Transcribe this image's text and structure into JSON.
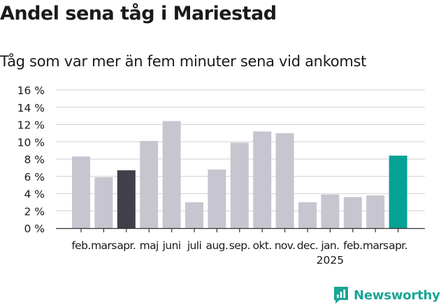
{
  "title": "Andel sena tåg i Mariestad",
  "subtitle": "Tåg som var mer än fem minuter sena vid ankomst",
  "brand": {
    "name": "Newsworthy",
    "color": "#1aa596"
  },
  "colors": {
    "bar_default": "#c7c5d0",
    "bar_highlight_prev": "#403f4c",
    "bar_highlight_current": "#06a294",
    "grid": "#d9d9d9",
    "axis": "#333333"
  },
  "chart_data": {
    "type": "bar",
    "categories": [
      "feb.",
      "mars",
      "apr.",
      "maj",
      "juni",
      "juli",
      "aug.",
      "sep.",
      "okt.",
      "nov.",
      "dec.",
      "jan.",
      "feb.",
      "mars",
      "apr."
    ],
    "year_label": {
      "text": "2025",
      "under_category_index": 11
    },
    "values": [
      8.3,
      5.9,
      6.7,
      10.1,
      12.4,
      3.0,
      6.8,
      9.9,
      11.2,
      11.0,
      3.0,
      3.9,
      3.6,
      3.8,
      8.4
    ],
    "highlight": {
      "2": "bar_highlight_prev",
      "14": "bar_highlight_current"
    },
    "yticks": [
      0,
      2,
      4,
      6,
      8,
      10,
      12,
      14,
      16
    ],
    "ytick_labels": [
      "0 %",
      "2 %",
      "4 %",
      "6 %",
      "8 %",
      "10 %",
      "12 %",
      "14 %",
      "16 %"
    ],
    "ylim": [
      0,
      16
    ],
    "grid": true
  }
}
